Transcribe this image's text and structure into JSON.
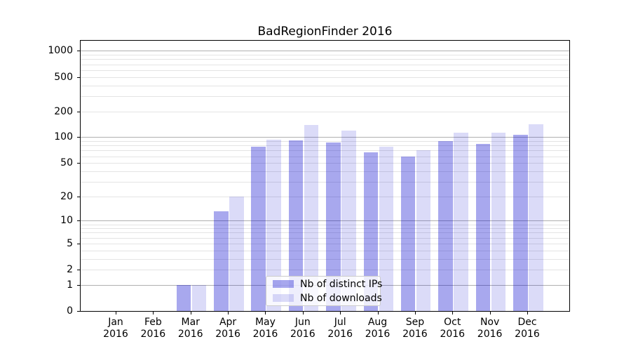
{
  "chart_data": {
    "type": "bar",
    "title": "BadRegionFinder 2016",
    "categories": [
      "Jan",
      "Feb",
      "Mar",
      "Apr",
      "May",
      "Jun",
      "Jul",
      "Aug",
      "Sep",
      "Oct",
      "Nov",
      "Dec"
    ],
    "x_year_suffix": "2016",
    "series": [
      {
        "name": "Nb of distinct IPs",
        "color": "rgba(0,0,205,0.34)",
        "values": [
          0,
          0,
          1,
          13,
          77,
          92,
          86,
          67,
          59,
          90,
          83,
          106
        ]
      },
      {
        "name": "Nb of downloads",
        "color": "rgba(0,0,205,0.14)",
        "values": [
          0,
          0,
          1,
          20,
          93,
          140,
          120,
          77,
          70,
          114,
          113,
          142
        ]
      }
    ],
    "xlabel": "",
    "ylabel": "",
    "yscale": "symlog-log1p",
    "yticks": [
      0,
      1,
      2,
      5,
      10,
      20,
      50,
      100,
      200,
      500,
      1000
    ],
    "ylim": [
      0,
      1310
    ],
    "grid": true,
    "legend_position": "lower center"
  },
  "colors": {
    "grid_major": "#b0b0b0",
    "grid_minor": "#e4e4e4",
    "axis": "#000000",
    "background": "#ffffff"
  }
}
